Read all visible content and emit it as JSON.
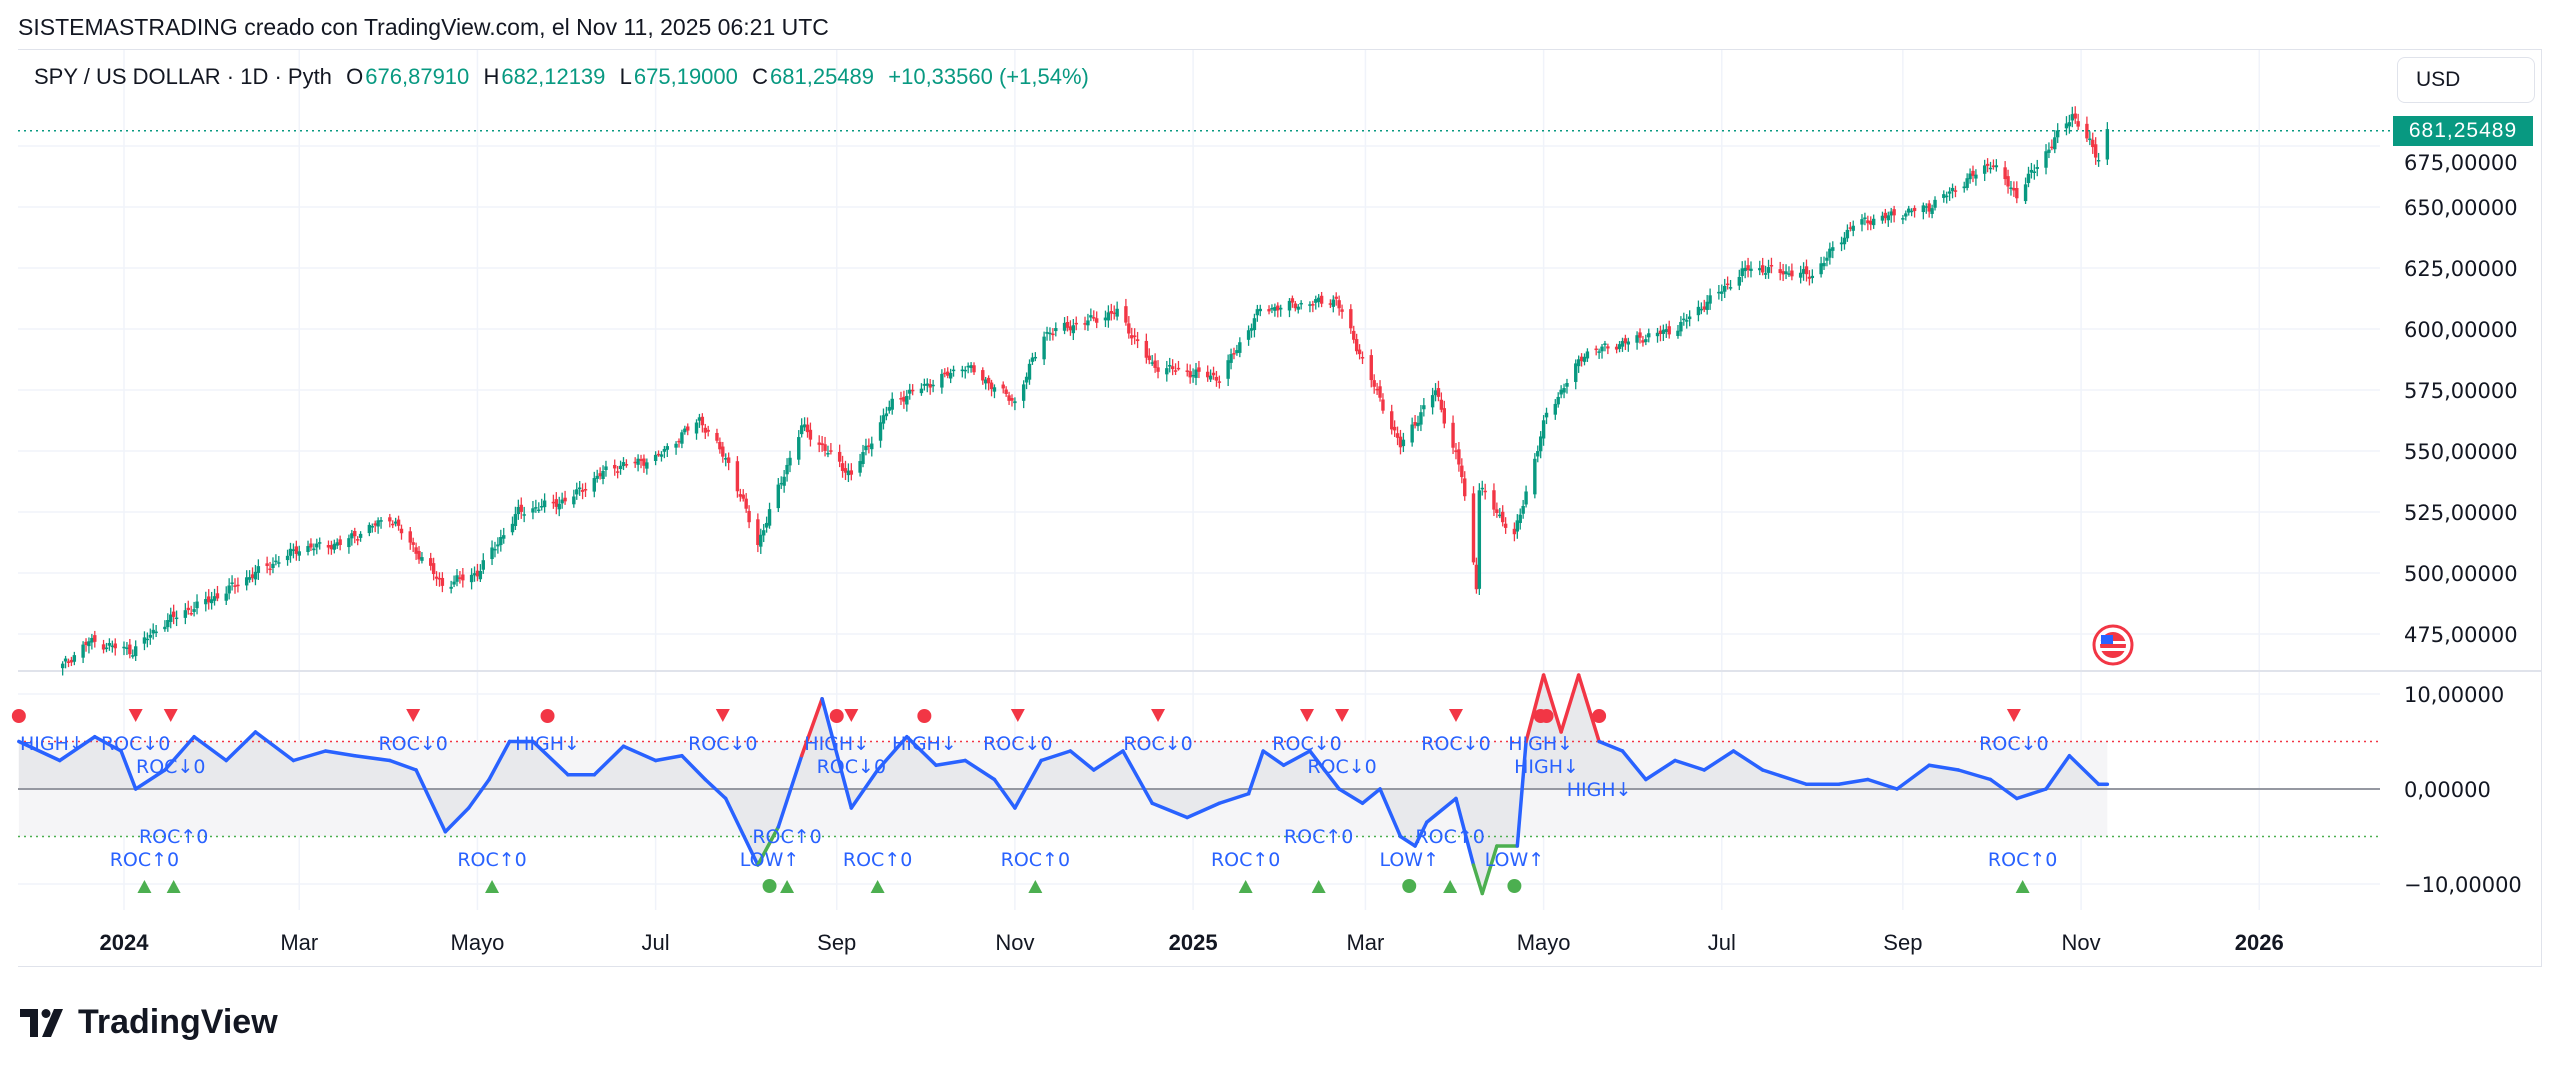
{
  "credit": "SISTEMASTRADING creado con TradingView.com, el Nov 11, 2025 06:21 UTC",
  "legend": {
    "symbol": "SPY / US DOLLAR · 1D · Pyth",
    "o_label": "O",
    "o": "676,87910",
    "h_label": "H",
    "h": "682,12139",
    "l_label": "L",
    "l": "675,19000",
    "c_label": "C",
    "c": "681,25489",
    "change": "+10,33560 (+1,54%)"
  },
  "currency_button": "USD",
  "last_price_label": "681,25489",
  "brand": "TradingView",
  "colors": {
    "up": "#089981",
    "down": "#f23645",
    "roc_line": "#2962ff",
    "roc_high": "#f23645",
    "roc_low": "#4caf50"
  },
  "chart_data": [
    {
      "type": "candlestick",
      "title": "SPY / US DOLLAR · 1D",
      "ylim": [
        465,
        695
      ],
      "y_ticks": [
        "475,00000",
        "500,00000",
        "525,00000",
        "550,00000",
        "575,00000",
        "600,00000",
        "625,00000",
        "650,00000",
        "675,00000"
      ],
      "y_tick_values": [
        475,
        500,
        525,
        550,
        575,
        600,
        625,
        650,
        675
      ],
      "x_ticks": [
        {
          "label": "2024",
          "date": "2024-01-01",
          "bold": true
        },
        {
          "label": "Mar",
          "date": "2024-03-01"
        },
        {
          "label": "Mayo",
          "date": "2024-05-01"
        },
        {
          "label": "Jul",
          "date": "2024-07-01"
        },
        {
          "label": "Sep",
          "date": "2024-09-01"
        },
        {
          "label": "Nov",
          "date": "2024-11-01"
        },
        {
          "label": "2025",
          "date": "2025-01-01",
          "bold": true
        },
        {
          "label": "Mar",
          "date": "2025-03-01"
        },
        {
          "label": "Mayo",
          "date": "2025-05-01"
        },
        {
          "label": "Jul",
          "date": "2025-07-01"
        },
        {
          "label": "Sep",
          "date": "2025-09-01"
        },
        {
          "label": "Nov",
          "date": "2025-11-01"
        },
        {
          "label": "2026",
          "date": "2026-01-01",
          "bold": true
        }
      ],
      "close_points": [
        [
          "2023-12-11",
          462
        ],
        [
          "2023-12-20",
          472
        ],
        [
          "2024-01-04",
          468
        ],
        [
          "2024-01-15",
          480
        ],
        [
          "2024-02-01",
          490
        ],
        [
          "2024-02-15",
          500
        ],
        [
          "2024-03-01",
          510
        ],
        [
          "2024-03-15",
          512
        ],
        [
          "2024-04-01",
          523
        ],
        [
          "2024-04-19",
          495
        ],
        [
          "2024-05-01",
          500
        ],
        [
          "2024-05-15",
          525
        ],
        [
          "2024-06-01",
          530
        ],
        [
          "2024-06-15",
          543
        ],
        [
          "2024-07-01",
          547
        ],
        [
          "2024-07-16",
          563
        ],
        [
          "2024-07-26",
          545
        ],
        [
          "2024-08-05",
          512
        ],
        [
          "2024-08-20",
          560
        ],
        [
          "2024-09-06",
          540
        ],
        [
          "2024-09-20",
          570
        ],
        [
          "2024-10-15",
          585
        ],
        [
          "2024-11-01",
          570
        ],
        [
          "2024-11-11",
          598
        ],
        [
          "2024-12-06",
          607
        ],
        [
          "2024-12-18",
          585
        ],
        [
          "2025-01-10",
          580
        ],
        [
          "2025-01-24",
          608
        ],
        [
          "2025-02-19",
          612
        ],
        [
          "2025-03-13",
          552
        ],
        [
          "2025-03-25",
          575
        ],
        [
          "2025-04-03",
          540
        ],
        [
          "2025-04-08",
          495
        ],
        [
          "2025-04-09",
          535
        ],
        [
          "2025-04-21",
          515
        ],
        [
          "2025-05-02",
          565
        ],
        [
          "2025-05-15",
          590
        ],
        [
          "2025-06-15",
          600
        ],
        [
          "2025-07-10",
          625
        ],
        [
          "2025-08-01",
          622
        ],
        [
          "2025-08-15",
          643
        ],
        [
          "2025-09-10",
          650
        ],
        [
          "2025-10-01",
          668
        ],
        [
          "2025-10-10",
          655
        ],
        [
          "2025-10-29",
          688
        ],
        [
          "2025-11-07",
          670
        ],
        [
          "2025-11-10",
          681.25
        ]
      ],
      "last_price": 681.25489
    },
    {
      "type": "line",
      "y_ticks": [
        "10,00000",
        "0,00000",
        "−10,00000"
      ],
      "y_tick_values": [
        10,
        0,
        -10
      ],
      "ylim": [
        -14,
        14
      ],
      "upper_level": 5,
      "lower_level": -5,
      "series": [
        [
          "2023-11-26",
          5
        ],
        [
          "2023-12-10",
          3
        ],
        [
          "2023-12-22",
          5.5
        ],
        [
          "2023-12-31",
          4
        ],
        [
          "2024-01-05",
          0
        ],
        [
          "2024-01-15",
          2
        ],
        [
          "2024-01-25",
          5.5
        ],
        [
          "2024-02-05",
          3
        ],
        [
          "2024-02-15",
          6
        ],
        [
          "2024-02-28",
          3
        ],
        [
          "2024-03-10",
          4
        ],
        [
          "2024-03-20",
          3.5
        ],
        [
          "2024-04-01",
          3
        ],
        [
          "2024-04-10",
          2
        ],
        [
          "2024-04-20",
          -4.5
        ],
        [
          "2024-04-28",
          -2
        ],
        [
          "2024-05-05",
          1
        ],
        [
          "2024-05-12",
          5
        ],
        [
          "2024-05-20",
          5
        ],
        [
          "2024-06-01",
          1.5
        ],
        [
          "2024-06-10",
          1.5
        ],
        [
          "2024-06-20",
          4.5
        ],
        [
          "2024-07-01",
          3
        ],
        [
          "2024-07-10",
          3.5
        ],
        [
          "2024-07-18",
          1
        ],
        [
          "2024-07-25",
          -1
        ],
        [
          "2024-08-05",
          -8
        ],
        [
          "2024-08-12",
          -4
        ],
        [
          "2024-08-20",
          3.5
        ],
        [
          "2024-08-27",
          9.5
        ],
        [
          "2024-09-06",
          -2
        ],
        [
          "2024-09-15",
          2
        ],
        [
          "2024-09-25",
          5.5
        ],
        [
          "2024-10-05",
          2.5
        ],
        [
          "2024-10-15",
          3
        ],
        [
          "2024-10-25",
          1
        ],
        [
          "2024-11-01",
          -2
        ],
        [
          "2024-11-10",
          3
        ],
        [
          "2024-11-20",
          4
        ],
        [
          "2024-11-28",
          2
        ],
        [
          "2024-12-08",
          4
        ],
        [
          "2024-12-18",
          -1.5
        ],
        [
          "2024-12-30",
          -3
        ],
        [
          "2025-01-10",
          -1.5
        ],
        [
          "2025-01-20",
          -0.5
        ],
        [
          "2025-01-25",
          4
        ],
        [
          "2025-02-01",
          2.5
        ],
        [
          "2025-02-10",
          4
        ],
        [
          "2025-02-20",
          0
        ],
        [
          "2025-02-28",
          -1.5
        ],
        [
          "2025-03-06",
          0
        ],
        [
          "2025-03-13",
          -5
        ],
        [
          "2025-03-18",
          -6
        ],
        [
          "2025-03-22",
          -3.5
        ],
        [
          "2025-04-01",
          -1
        ],
        [
          "2025-04-07",
          -8
        ],
        [
          "2025-04-10",
          -11
        ],
        [
          "2025-04-15",
          -6
        ],
        [
          "2025-04-22",
          -6
        ],
        [
          "2025-04-25",
          5
        ],
        [
          "2025-05-01",
          12
        ],
        [
          "2025-05-07",
          6
        ],
        [
          "2025-05-13",
          12
        ],
        [
          "2025-05-20",
          5
        ],
        [
          "2025-05-28",
          4
        ],
        [
          "2025-06-05",
          1
        ],
        [
          "2025-06-15",
          3
        ],
        [
          "2025-06-25",
          2
        ],
        [
          "2025-07-05",
          4
        ],
        [
          "2025-07-15",
          2
        ],
        [
          "2025-07-30",
          0.5
        ],
        [
          "2025-08-10",
          0.5
        ],
        [
          "2025-08-20",
          1
        ],
        [
          "2025-08-30",
          0
        ],
        [
          "2025-09-10",
          2.5
        ],
        [
          "2025-09-20",
          2
        ],
        [
          "2025-10-01",
          1
        ],
        [
          "2025-10-10",
          -1
        ],
        [
          "2025-10-20",
          0
        ],
        [
          "2025-10-28",
          3.5
        ],
        [
          "2025-11-07",
          0.5
        ],
        [
          "2025-11-10",
          0.5
        ]
      ],
      "signals_top": [
        {
          "date": "2023-11-26",
          "shape": "circle",
          "label": "HIGH↓"
        },
        {
          "date": "2024-01-05",
          "shape": "triangle-down",
          "label": "ROC↓0"
        },
        {
          "date": "2024-01-17",
          "shape": "triangle-down",
          "label": "ROC↓0"
        },
        {
          "date": "2024-04-09",
          "shape": "triangle-down",
          "label": "ROC↓0"
        },
        {
          "date": "2024-05-25",
          "shape": "circle",
          "label": "HIGH↓"
        },
        {
          "date": "2024-07-24",
          "shape": "triangle-down",
          "label": "ROC↓0"
        },
        {
          "date": "2024-09-01",
          "shape": "circle",
          "label": "HIGH↓"
        },
        {
          "date": "2024-09-06",
          "shape": "triangle-down",
          "label": "ROC↓0"
        },
        {
          "date": "2024-10-01",
          "shape": "circle",
          "label": "HIGH↓"
        },
        {
          "date": "2024-11-02",
          "shape": "triangle-down",
          "label": "ROC↓0"
        },
        {
          "date": "2024-12-20",
          "shape": "triangle-down",
          "label": "ROC↓0"
        },
        {
          "date": "2025-02-09",
          "shape": "triangle-down",
          "label": "ROC↓0"
        },
        {
          "date": "2025-02-21",
          "shape": "triangle-down",
          "label": "ROC↓0"
        },
        {
          "date": "2025-04-01",
          "shape": "triangle-down",
          "label": "ROC↓0"
        },
        {
          "date": "2025-04-30",
          "shape": "circle",
          "label": "HIGH↓"
        },
        {
          "date": "2025-05-02",
          "shape": "circle",
          "label": "HIGH↓"
        },
        {
          "date": "2025-05-20",
          "shape": "circle",
          "label": "HIGH↓"
        },
        {
          "date": "2025-10-09",
          "shape": "triangle-down",
          "label": "ROC↓0"
        }
      ],
      "signals_bottom": [
        {
          "date": "2024-01-08",
          "shape": "triangle-up",
          "label": "ROC↑0"
        },
        {
          "date": "2024-01-18",
          "shape": "triangle-up",
          "label": "ROC↑0"
        },
        {
          "date": "2024-05-06",
          "shape": "triangle-up",
          "label": "ROC↑0"
        },
        {
          "date": "2024-08-09",
          "shape": "circle",
          "label": "LOW↑"
        },
        {
          "date": "2024-08-15",
          "shape": "triangle-up",
          "label": "ROC↑0"
        },
        {
          "date": "2024-09-15",
          "shape": "triangle-up",
          "label": "ROC↑0"
        },
        {
          "date": "2024-11-08",
          "shape": "triangle-up",
          "label": "ROC↑0"
        },
        {
          "date": "2025-01-19",
          "shape": "triangle-up",
          "label": "ROC↑0"
        },
        {
          "date": "2025-02-13",
          "shape": "triangle-up",
          "label": "ROC↑0"
        },
        {
          "date": "2025-03-16",
          "shape": "circle",
          "label": "LOW↑"
        },
        {
          "date": "2025-03-30",
          "shape": "triangle-up",
          "label": "ROC↑0"
        },
        {
          "date": "2025-04-21",
          "shape": "circle",
          "label": "LOW↑"
        },
        {
          "date": "2025-10-12",
          "shape": "triangle-up",
          "label": "ROC↑0"
        }
      ]
    }
  ]
}
